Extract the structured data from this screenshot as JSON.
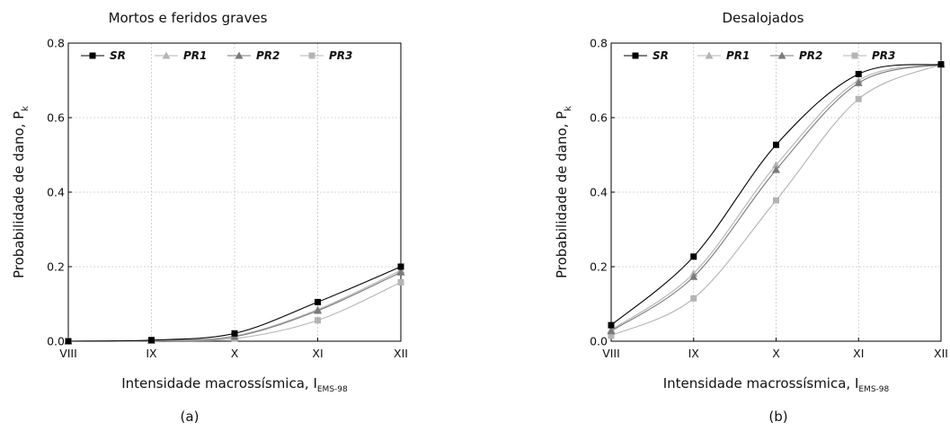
{
  "chart_data": [
    {
      "type": "line",
      "title": "Mortos e feridos graves",
      "xlabel": "Intensidade macrossísmica, I",
      "xlabel_sub": "EMS-98",
      "ylabel": "Probabilidade de dano, P",
      "ylabel_sub": "k",
      "categories": [
        "VIII",
        "IX",
        "X",
        "XI",
        "XII"
      ],
      "yticks": [
        "0.0",
        "0.2",
        "0.4",
        "0.6",
        "0.8"
      ],
      "ylim": [
        0,
        0.8
      ],
      "grid": true,
      "legend_position": "top",
      "caption": "(a)",
      "series": [
        {
          "name": "SR",
          "color": "#000000",
          "marker": "square",
          "values": [
            0.0,
            0.003,
            0.021,
            0.105,
            0.2
          ]
        },
        {
          "name": "PR1",
          "color": "#b4b4b4",
          "marker": "triangle",
          "values": [
            0.0,
            0.002,
            0.014,
            0.085,
            0.19
          ]
        },
        {
          "name": "PR2",
          "color": "#7a7a7a",
          "marker": "triangle",
          "values": [
            0.0,
            0.002,
            0.012,
            0.082,
            0.185
          ]
        },
        {
          "name": "PR3",
          "color": "#b4b4b4",
          "marker": "square",
          "values": [
            0.0,
            0.001,
            0.007,
            0.056,
            0.158
          ]
        }
      ]
    },
    {
      "type": "line",
      "title": "Desalojados",
      "xlabel": "Intensidade macrossísmica, I",
      "xlabel_sub": "EMS-98",
      "ylabel": "Probabilidade de dano, P",
      "ylabel_sub": "k",
      "categories": [
        "VIII",
        "IX",
        "X",
        "XI",
        "XII"
      ],
      "yticks": [
        "0.0",
        "0.2",
        "0.4",
        "0.6",
        "0.8"
      ],
      "ylim": [
        0,
        0.8
      ],
      "grid": true,
      "legend_position": "top",
      "caption": "(b)",
      "series": [
        {
          "name": "SR",
          "color": "#000000",
          "marker": "square",
          "values": [
            0.043,
            0.227,
            0.527,
            0.717,
            0.743
          ]
        },
        {
          "name": "PR1",
          "color": "#b4b4b4",
          "marker": "triangle",
          "values": [
            0.03,
            0.182,
            0.473,
            0.7,
            0.743
          ]
        },
        {
          "name": "PR2",
          "color": "#7a7a7a",
          "marker": "triangle",
          "values": [
            0.027,
            0.173,
            0.46,
            0.693,
            0.743
          ]
        },
        {
          "name": "PR3",
          "color": "#b4b4b4",
          "marker": "square",
          "values": [
            0.015,
            0.115,
            0.378,
            0.65,
            0.743
          ]
        }
      ]
    }
  ]
}
